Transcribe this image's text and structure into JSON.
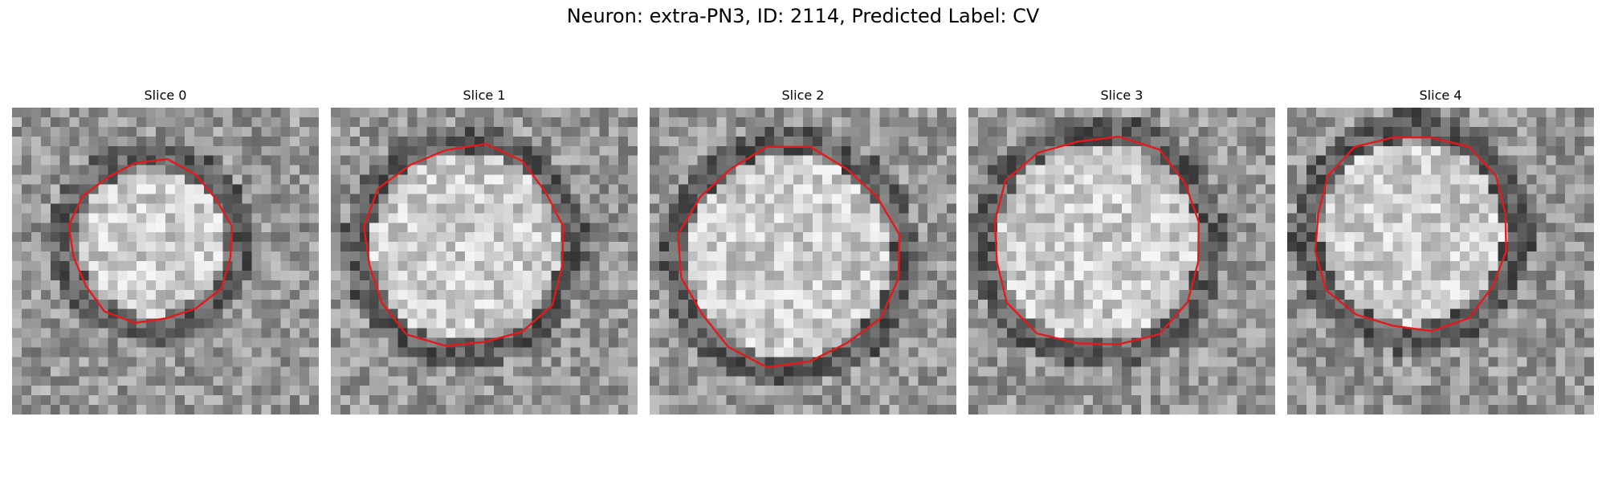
{
  "title": "Neuron: extra-PN3, ID: 2114, Predicted Label: CV",
  "slices": [
    {
      "label": "Slice 0"
    },
    {
      "label": "Slice 1"
    },
    {
      "label": "Slice 2"
    },
    {
      "label": "Slice 3"
    },
    {
      "label": "Slice 4"
    }
  ],
  "colors": {
    "contour": "#e31a1c"
  }
}
